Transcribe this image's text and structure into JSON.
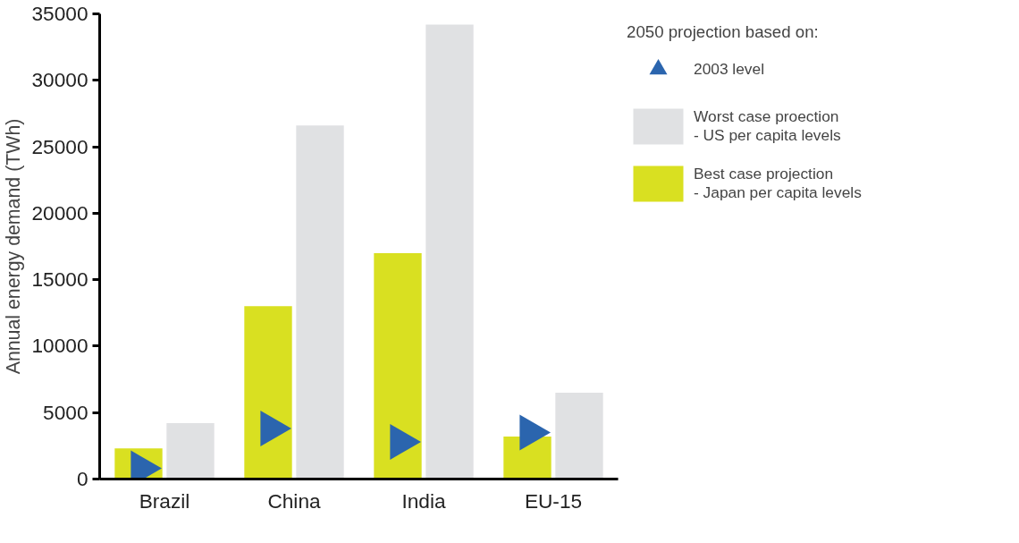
{
  "chart_data": {
    "type": "bar",
    "ylabel": "Annual energy demand (TWh)",
    "legend_title": "2050 projection based on:",
    "categories": [
      "Brazil",
      "China",
      "India",
      "EU-15"
    ],
    "series": [
      {
        "name": "Best case projection\n- Japan per capita levels",
        "color": "#d9e021",
        "values": [
          2300,
          13000,
          17000,
          3200
        ]
      },
      {
        "name": "Worst case proection\n- US per capita levels",
        "color": "#e0e1e3",
        "values": [
          4200,
          26600,
          34200,
          6500
        ]
      },
      {
        "name": "2003 level",
        "type": "scatter",
        "marker": "triangle",
        "color": "#2b65ae",
        "x": [
          "Brazil",
          "China",
          "India",
          "EU-15"
        ],
        "values": [
          800,
          3800,
          2800,
          3500
        ]
      }
    ],
    "ylim": [
      0,
      35000
    ],
    "yticks": [
      0,
      5000,
      10000,
      15000,
      20000,
      25000,
      30000,
      35000
    ],
    "grid": false,
    "legend": "right"
  }
}
